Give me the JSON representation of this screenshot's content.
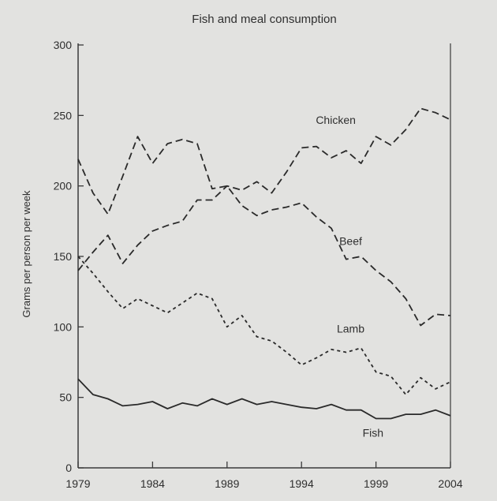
{
  "chart_data": {
    "type": "line",
    "title": "Fish and meal consumption",
    "xlabel": "",
    "ylabel": "Grams per person per week",
    "xlim": [
      1979,
      2004
    ],
    "ylim": [
      0,
      300
    ],
    "xticks": [
      "1979",
      "1984",
      "1989",
      "1994",
      "1999",
      "2004"
    ],
    "yticks": [
      "0",
      "50",
      "100",
      "150",
      "200",
      "250",
      "300"
    ],
    "grid": false,
    "legend": "none",
    "series": [
      {
        "name": "Chicken",
        "style": "dashed",
        "x": [
          1979,
          1980,
          1981,
          1982,
          1983,
          1984,
          1985,
          1986,
          1987,
          1988,
          1989,
          1990,
          1991,
          1992,
          1993,
          1994,
          1995,
          1996,
          1997,
          1998,
          1999,
          2000,
          2001,
          2002,
          2003,
          2004
        ],
        "y": [
          140,
          153,
          165,
          145,
          158,
          168,
          172,
          175,
          190,
          190,
          200,
          197,
          203,
          195,
          210,
          227,
          228,
          220,
          225,
          216,
          235,
          229,
          240,
          255,
          252,
          247
        ]
      },
      {
        "name": "Beef",
        "style": "dashed",
        "x": [
          1979,
          1980,
          1981,
          1982,
          1983,
          1984,
          1985,
          1986,
          1987,
          1988,
          1989,
          1990,
          1991,
          1992,
          1993,
          1994,
          1995,
          1996,
          1997,
          1998,
          1999,
          2000,
          2001,
          2002,
          2003,
          2004
        ],
        "y": [
          219,
          195,
          180,
          207,
          235,
          216,
          230,
          233,
          230,
          198,
          200,
          186,
          179,
          183,
          185,
          188,
          178,
          170,
          148,
          150,
          140,
          132,
          120,
          101,
          109,
          108
        ]
      },
      {
        "name": "Lamb",
        "style": "dotted",
        "x": [
          1979,
          1980,
          1981,
          1982,
          1983,
          1984,
          1985,
          1986,
          1987,
          1988,
          1989,
          1990,
          1991,
          1992,
          1993,
          1994,
          1995,
          1996,
          1997,
          1998,
          1999,
          2000,
          2001,
          2002,
          2003,
          2004
        ],
        "y": [
          150,
          138,
          125,
          113,
          120,
          115,
          110,
          117,
          124,
          120,
          100,
          108,
          93,
          90,
          82,
          73,
          78,
          84,
          82,
          85,
          68,
          65,
          52,
          64,
          56,
          61
        ]
      },
      {
        "name": "Fish",
        "style": "solid",
        "x": [
          1979,
          1980,
          1981,
          1982,
          1983,
          1984,
          1985,
          1986,
          1987,
          1988,
          1989,
          1990,
          1991,
          1992,
          1993,
          1994,
          1995,
          1996,
          1997,
          1998,
          1999,
          2000,
          2001,
          2002,
          2003,
          2004
        ],
        "y": [
          63,
          52,
          49,
          44,
          45,
          47,
          42,
          46,
          44,
          49,
          45,
          49,
          45,
          47,
          45,
          43,
          42,
          45,
          41,
          41,
          35,
          35,
          38,
          38,
          41,
          37
        ]
      }
    ]
  }
}
